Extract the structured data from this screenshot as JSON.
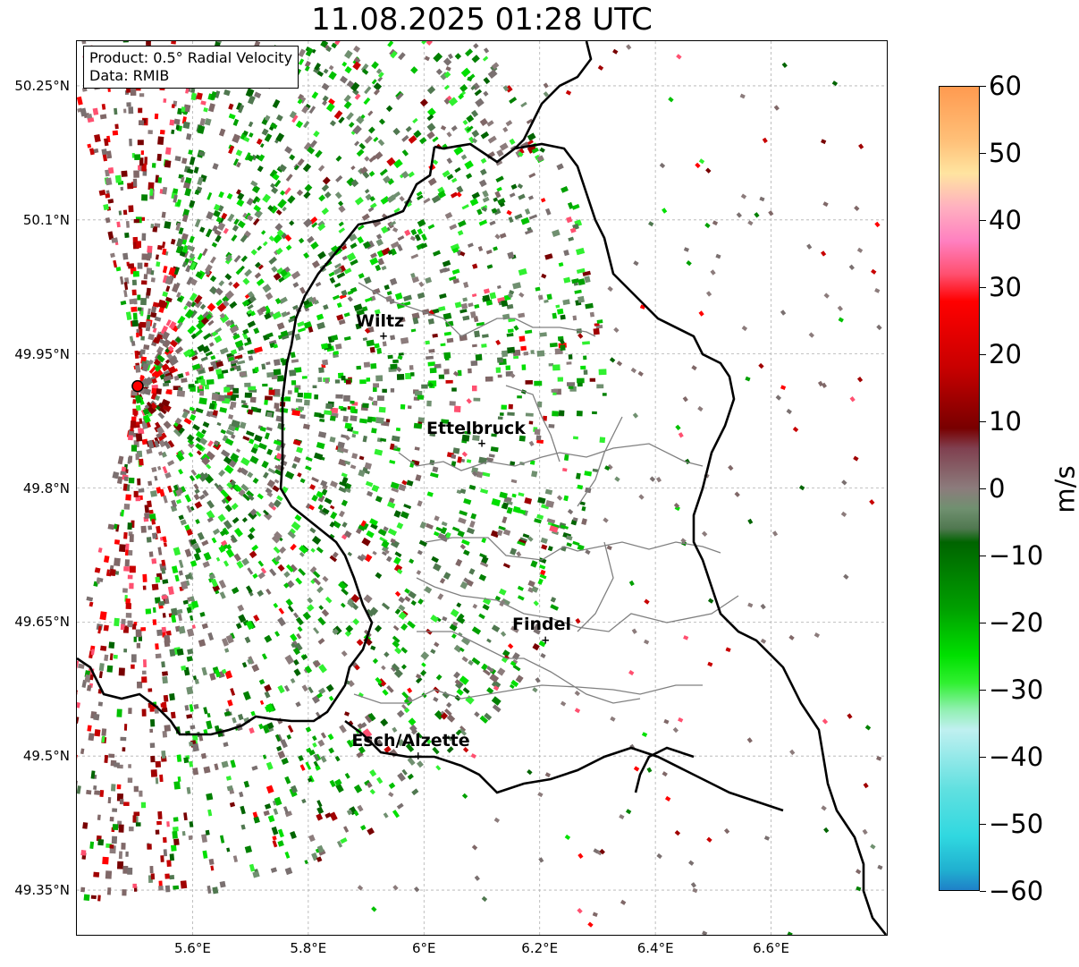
{
  "title": "11.08.2025 01:28 UTC",
  "info_box": {
    "product": "Product: 0.5° Radial Velocity",
    "data": "Data: RMIB"
  },
  "axes": {
    "lat_ticks": [
      "50.25°N",
      "50.1°N",
      "49.95°N",
      "49.8°N",
      "49.65°N",
      "49.5°N",
      "49.35°N"
    ],
    "lon_ticks": [
      "5.6°E",
      "5.8°E",
      "6°E",
      "6.2°E",
      "6.4°E",
      "6.6°E"
    ],
    "lat_range": [
      49.3,
      50.3
    ],
    "lon_range": [
      5.4,
      6.8
    ],
    "grid": true
  },
  "cities": [
    {
      "name": "Wiltz",
      "lon": 5.93,
      "lat": 49.97
    },
    {
      "name": "Ettelbruck",
      "lon": 6.1,
      "lat": 49.85
    },
    {
      "name": "Findel",
      "lon": 6.21,
      "lat": 49.63
    },
    {
      "name": "Esch/Alzette",
      "lon": 5.99,
      "lat": 49.5
    }
  ],
  "radar_site": {
    "lon": 5.505,
    "lat": 49.914,
    "color": "#ff0000"
  },
  "colorbar": {
    "unit": "m/s",
    "min": -60,
    "max": 60,
    "ticks": [
      "60",
      "50",
      "40",
      "30",
      "20",
      "10",
      "0",
      "−10",
      "−20",
      "−30",
      "−40",
      "−50",
      "−60"
    ],
    "stops": [
      {
        "v": 60,
        "color": "#ff9a50"
      },
      {
        "v": 52,
        "color": "#ffc078"
      },
      {
        "v": 47,
        "color": "#ffe4a0"
      },
      {
        "v": 42,
        "color": "#ffb0c0"
      },
      {
        "v": 37,
        "color": "#ff80c0"
      },
      {
        "v": 32,
        "color": "#ff5070"
      },
      {
        "v": 28,
        "color": "#ff0000"
      },
      {
        "v": 18,
        "color": "#c80000"
      },
      {
        "v": 9,
        "color": "#780000"
      },
      {
        "v": 6,
        "color": "#804050"
      },
      {
        "v": 0,
        "color": "#8c7c7c"
      },
      {
        "v": -3,
        "color": "#709070"
      },
      {
        "v": -6,
        "color": "#507850"
      },
      {
        "v": -8,
        "color": "#006400"
      },
      {
        "v": -18,
        "color": "#00a000"
      },
      {
        "v": -25,
        "color": "#00e000"
      },
      {
        "v": -29,
        "color": "#30f030"
      },
      {
        "v": -33,
        "color": "#90f0b0"
      },
      {
        "v": -36,
        "color": "#c0f0f0"
      },
      {
        "v": -45,
        "color": "#60e0e0"
      },
      {
        "v": -52,
        "color": "#30d8e0"
      },
      {
        "v": -57,
        "color": "#20b0d0"
      },
      {
        "v": -60,
        "color": "#1f80c8"
      }
    ]
  },
  "colors": {
    "border_country": "#000000",
    "border_canton": "#808080",
    "grid": "#b0b0b0"
  }
}
